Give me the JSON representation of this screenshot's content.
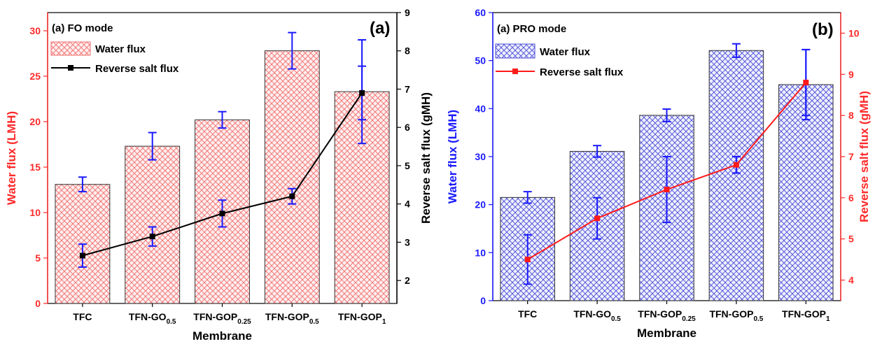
{
  "colors": {
    "fo_bar": "#f26d6d",
    "fo_bar_fill": "#fdeeee",
    "fo_line": "#000000",
    "fo_left_axis": "#ff2a2a",
    "fo_err_bar": "#1a1aff",
    "pro_bar": "#4a4ad8",
    "pro_bar_fill": "#eef0fc",
    "pro_line": "#ff1a1a",
    "pro_left_axis": "#1a1aff",
    "pro_right_axis": "#ff2a2a",
    "pro_err_bar": "#1a1aff"
  },
  "chart_data": [
    {
      "type": "bar",
      "panel_title": "(a) FO mode",
      "panel_tag": "(a)",
      "categories": [
        {
          "main": "TFC",
          "sub": ""
        },
        {
          "main": "TFN-GO",
          "sub": "0.5"
        },
        {
          "main": "TFN-GOP",
          "sub": "0.25"
        },
        {
          "main": "TFN-GOP",
          "sub": "0.5"
        },
        {
          "main": "TFN-GOP",
          "sub": "1"
        }
      ],
      "xlabel": "Membrane",
      "ylabel": "Water flux (LMH)",
      "ylabel_right": "Reverse salt flux (gMH)",
      "ylim": [
        0,
        32
      ],
      "yticks": [
        0,
        5,
        10,
        15,
        20,
        25,
        30
      ],
      "ylim_right": [
        1.4,
        9
      ],
      "yticks_right": [
        2,
        3,
        4,
        5,
        6,
        7,
        8,
        9
      ],
      "legend": [
        "Water flux",
        "Reverse salt flux"
      ],
      "legend_position": "top-left",
      "series": [
        {
          "name": "Water flux",
          "type": "bar",
          "axis": "left",
          "values": [
            13.1,
            17.3,
            20.2,
            27.8,
            23.3
          ],
          "error": [
            0.8,
            1.5,
            0.9,
            2.0,
            5.7
          ]
        },
        {
          "name": "Reverse salt flux",
          "type": "line",
          "axis": "right",
          "values": [
            2.65,
            3.15,
            3.75,
            4.2,
            6.9
          ],
          "error": [
            0.3,
            0.25,
            0.35,
            0.2,
            0.7
          ]
        }
      ]
    },
    {
      "type": "bar",
      "panel_title": "(a) PRO mode",
      "panel_tag": "(b)",
      "categories": [
        {
          "main": "TFC",
          "sub": ""
        },
        {
          "main": "TFN-GO",
          "sub": "0.5"
        },
        {
          "main": "TFN-GOP",
          "sub": "0.25"
        },
        {
          "main": "TFN-GOP",
          "sub": "0.5"
        },
        {
          "main": "TFN-GOP",
          "sub": "1"
        }
      ],
      "xlabel": "Membrane",
      "ylabel": "Water flux (LMH)",
      "ylabel_right": "Reverse salt flux (gMH)",
      "ylim": [
        0,
        60
      ],
      "yticks": [
        0,
        10,
        20,
        30,
        40,
        50,
        60
      ],
      "ylim_right": [
        3.5,
        10.5
      ],
      "yticks_right": [
        4,
        5,
        6,
        7,
        8,
        9,
        10
      ],
      "legend": [
        "Water flux",
        "Reverse salt flux"
      ],
      "legend_position": "top-left",
      "series": [
        {
          "name": "Water flux",
          "type": "bar",
          "axis": "left",
          "values": [
            21.5,
            31.1,
            38.6,
            52.1,
            45.0
          ],
          "error": [
            1.2,
            1.2,
            1.3,
            1.4,
            7.3
          ]
        },
        {
          "name": "Reverse salt flux",
          "type": "line",
          "axis": "right",
          "values": [
            4.5,
            5.5,
            6.2,
            6.8,
            8.8
          ],
          "error": [
            0.6,
            0.5,
            0.8,
            0.2,
            0.8
          ]
        }
      ]
    }
  ]
}
